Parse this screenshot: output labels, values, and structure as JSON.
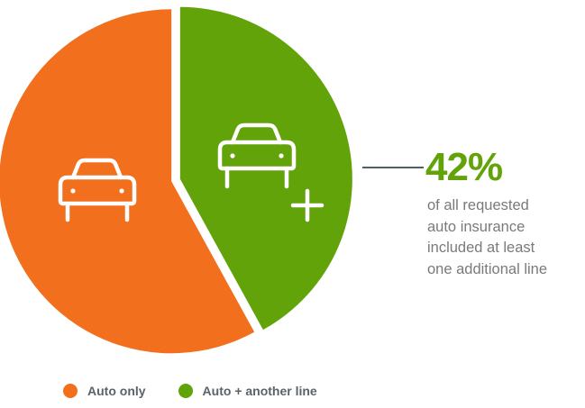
{
  "chart_data": {
    "type": "pie",
    "slices": [
      {
        "label": "Auto only",
        "value": 58,
        "color": "#f26f1e",
        "icon": "car-icon"
      },
      {
        "label": "Auto + another line",
        "value": 42,
        "color": "#62a30a",
        "icon": "car-plus-icon"
      }
    ],
    "legend_position": "bottom-left",
    "annotation": {
      "value": "42%",
      "text_lines": [
        "of all requested",
        "auto insurance",
        "included at least",
        "one additional line"
      ],
      "color": "#62a30a"
    }
  }
}
